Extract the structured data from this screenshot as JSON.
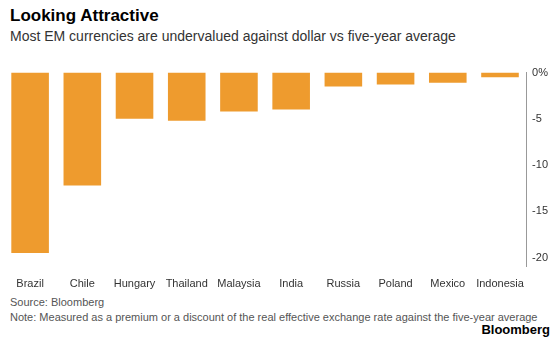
{
  "chart_data": {
    "type": "bar",
    "title": "Looking Attractive",
    "subtitle": "Most EM currencies are undervalued against dollar vs five-year average",
    "categories": [
      "Brazil",
      "Chile",
      "Hungary",
      "Thailand",
      "Malaysia",
      "India",
      "Russia",
      "Poland",
      "Mexico",
      "Indonesia"
    ],
    "values": [
      -19.5,
      -12.2,
      -5.0,
      -5.2,
      -4.2,
      -4.0,
      -1.5,
      -1.3,
      -1.1,
      -0.5
    ],
    "color": "#ee9b2e",
    "ylim": [
      -21,
      0
    ],
    "yticks": [
      {
        "value": 0,
        "label": "0%"
      },
      -5,
      -10,
      -15,
      -20
    ],
    "grid": false,
    "source": "Source: Bloomberg",
    "note": "Note: Measured as a premium or a discount of the real effective exchange rate against the five-year average",
    "logo": "Bloomberg"
  }
}
